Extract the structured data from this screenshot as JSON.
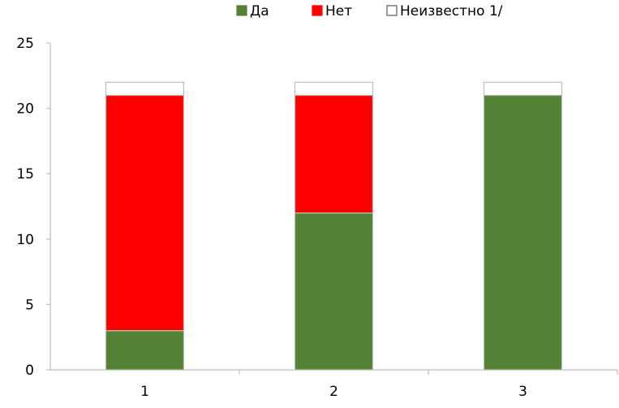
{
  "chart_data": {
    "type": "bar",
    "stacked": true,
    "categories": [
      "1",
      "2",
      "3"
    ],
    "series": [
      {
        "name": "Да",
        "values": [
          3,
          12,
          21
        ],
        "color": "#548235"
      },
      {
        "name": "Нет",
        "values": [
          18,
          9,
          0
        ],
        "color": "#ff0000"
      },
      {
        "name": "Неизвестно 1/",
        "values": [
          1,
          1,
          1
        ],
        "color": "#ffffff"
      }
    ],
    "ylim": [
      0,
      25
    ],
    "yticks": [
      0,
      5,
      10,
      15,
      20,
      25
    ],
    "grid": false,
    "legend": "top"
  }
}
